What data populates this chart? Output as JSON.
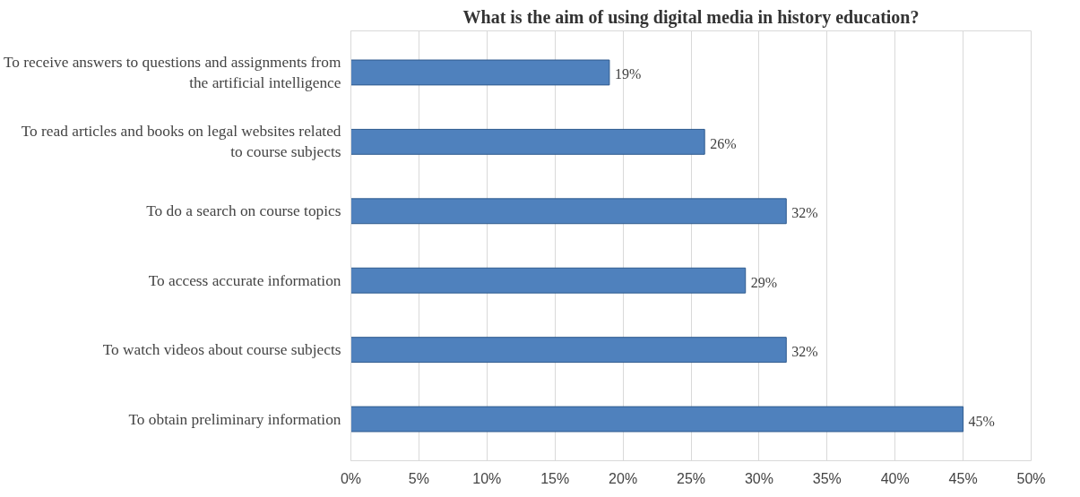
{
  "chart_data": {
    "type": "bar",
    "orientation": "horizontal",
    "title": "What is the aim of using digital media in history education?",
    "categories": [
      "To receive answers to questions and assignments from the artificial intelligence",
      "To read articles and books on legal websites related to course subjects",
      "To do a search on course topics",
      "To access accurate information",
      "To watch videos about course subjects",
      "To obtain preliminary information"
    ],
    "values": [
      19,
      26,
      32,
      29,
      32,
      45
    ],
    "value_labels": [
      "19%",
      "26%",
      "32%",
      "29%",
      "32%",
      "45%"
    ],
    "color": "#4f81bd",
    "xlim": [
      0,
      50
    ],
    "xticks": [
      {
        "value": 0,
        "label": "0%"
      },
      {
        "value": 5,
        "label": "5%"
      },
      {
        "value": 10,
        "label": "10%"
      },
      {
        "value": 15,
        "label": "15%"
      },
      {
        "value": 20,
        "label": "20%"
      },
      {
        "value": 25,
        "label": "25%"
      },
      {
        "value": 30,
        "label": "30%"
      },
      {
        "value": 35,
        "label": "35%"
      },
      {
        "value": 40,
        "label": "40%"
      },
      {
        "value": 45,
        "label": "45%"
      },
      {
        "value": 50,
        "label": "50%"
      }
    ],
    "grid": "x"
  }
}
